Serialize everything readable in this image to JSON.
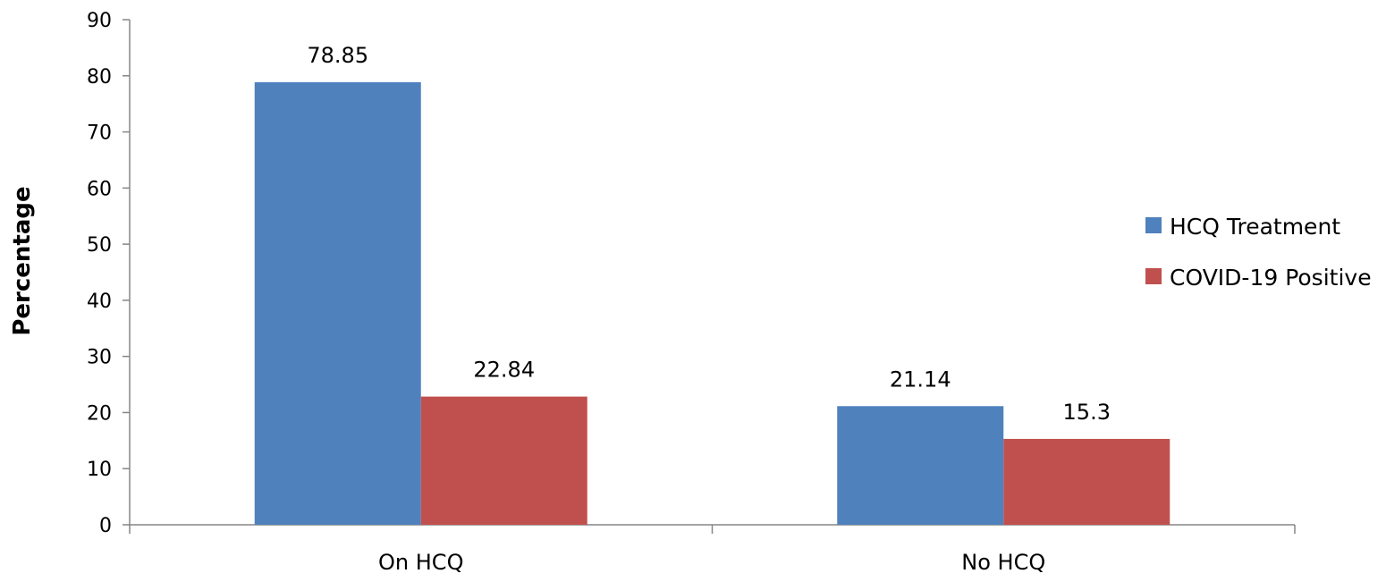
{
  "chart_data": {
    "type": "bar",
    "title": "",
    "xlabel": "",
    "ylabel": "Percentage",
    "ylim": [
      0,
      90
    ],
    "yticks": [
      0,
      10,
      20,
      30,
      40,
      50,
      60,
      70,
      80,
      90
    ],
    "categories": [
      "On HCQ",
      "No HCQ"
    ],
    "series": [
      {
        "name": "HCQ Treatment",
        "values": [
          78.85,
          21.14
        ],
        "labels": [
          "78.85",
          "21.14"
        ],
        "color": "#4F81BD"
      },
      {
        "name": "COVID-19 Positive",
        "values": [
          22.84,
          15.3
        ],
        "labels": [
          "22.84",
          "15.3"
        ],
        "color": "#C0504D"
      }
    ],
    "grid": false,
    "legend_position": "right",
    "axis_color": "#868686"
  }
}
